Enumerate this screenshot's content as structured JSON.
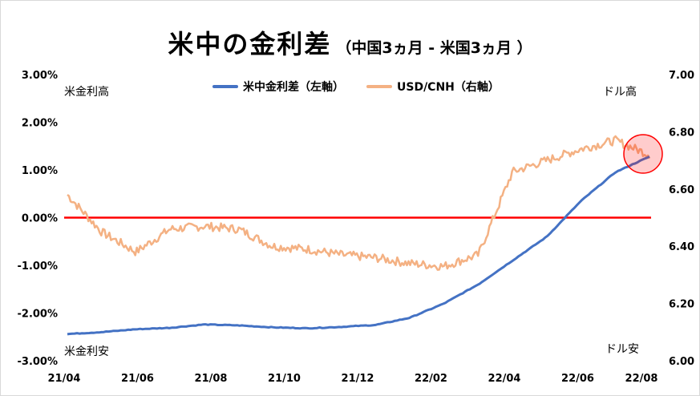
{
  "chart_data": {
    "type": "line",
    "title": "米中の金利差",
    "subtitle": "（中国3ヵ月 - 米国3ヵ月 ）",
    "x_ticks": [
      "21/04",
      "21/06",
      "21/08",
      "21/10",
      "21/12",
      "22/02",
      "22/04",
      "22/06",
      "22/08"
    ],
    "y_left": {
      "ticks": [
        "3.00%",
        "2.00%",
        "1.00%",
        "0.00%",
        "-1.00%",
        "-2.00%",
        "-3.00%"
      ],
      "range": [
        -3,
        3
      ]
    },
    "y_right": {
      "ticks": [
        "7.00",
        "6.80",
        "6.60",
        "6.40",
        "6.20",
        "6.00"
      ],
      "range": [
        6.0,
        7.0
      ]
    },
    "annotations": {
      "top_left": "米金利高",
      "bottom_left": "米金利安",
      "top_right": "ドル高",
      "bottom_right": "ドル安"
    },
    "zero_line_color": "#ff0000",
    "series": [
      {
        "name": "米中金利差（左軸）",
        "axis": "left",
        "color": "#4472c4",
        "points": [
          [
            "21/04",
            -2.44
          ],
          [
            "21/05",
            -2.4
          ],
          [
            "21/06",
            -2.34
          ],
          [
            "21/07",
            -2.31
          ],
          [
            "21/08",
            -2.24
          ],
          [
            "21/09",
            -2.26
          ],
          [
            "21/10",
            -2.3
          ],
          [
            "21/11",
            -2.32
          ],
          [
            "21/12",
            -2.29
          ],
          [
            "22/01",
            -2.25
          ],
          [
            "22/02",
            -2.1
          ],
          [
            "22/03",
            -1.8
          ],
          [
            "22/04",
            -1.4
          ],
          [
            "22/05",
            -0.9
          ],
          [
            "22/06",
            -0.4
          ],
          [
            "22/07",
            0.35
          ],
          [
            "22/08",
            0.95
          ],
          [
            "22/08-end",
            1.28
          ]
        ]
      },
      {
        "name": "USD/CNH（右軸）",
        "axis": "right",
        "color": "#f4b183",
        "points": [
          [
            "21/04",
            6.58
          ],
          [
            "21/05",
            6.45
          ],
          [
            "21/06",
            6.38
          ],
          [
            "21/07",
            6.46
          ],
          [
            "21/08",
            6.47
          ],
          [
            "21/09",
            6.46
          ],
          [
            "21/10",
            6.4
          ],
          [
            "21/11",
            6.39
          ],
          [
            "21/12",
            6.37
          ],
          [
            "22/01",
            6.36
          ],
          [
            "22/02",
            6.34
          ],
          [
            "22/03",
            6.33
          ],
          [
            "22/04",
            6.37
          ],
          [
            "22/05",
            6.66
          ],
          [
            "22/06",
            6.7
          ],
          [
            "22/07",
            6.74
          ],
          [
            "22/08",
            6.77
          ],
          [
            "22/08-end",
            6.72
          ]
        ]
      }
    ],
    "highlight_circle": {
      "color": "#ff0000",
      "fill": "rgba(255,0,0,0.2)"
    }
  }
}
